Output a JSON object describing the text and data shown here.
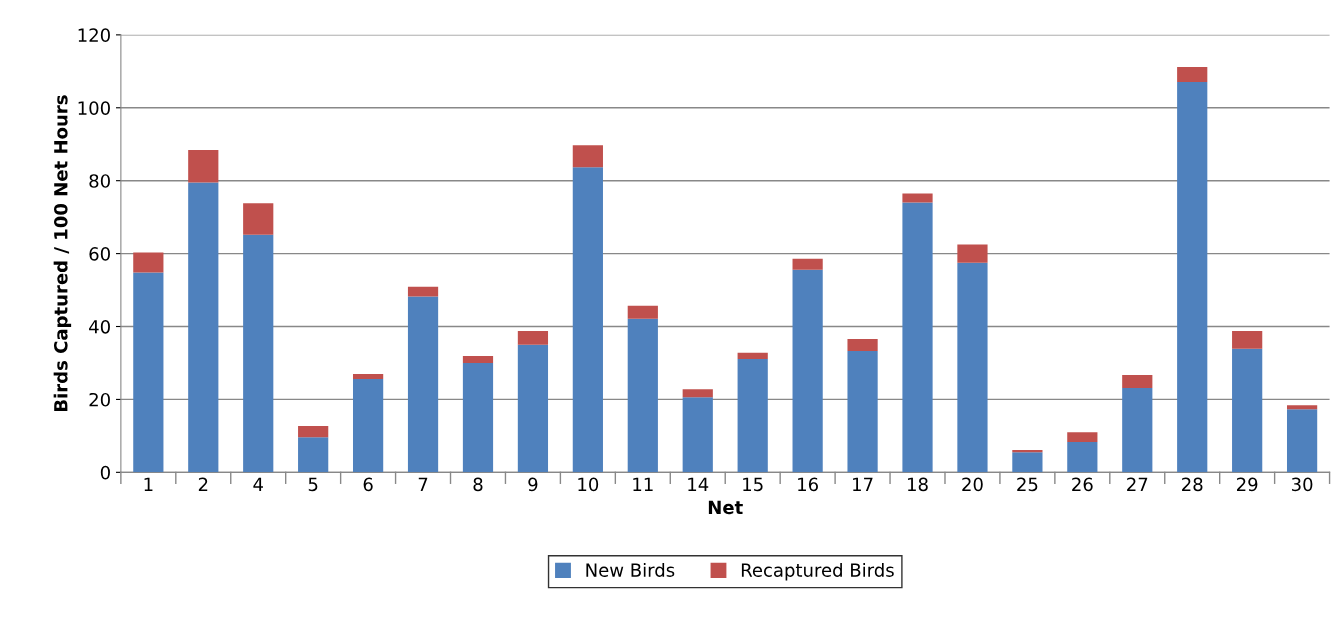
{
  "chart_data": {
    "type": "bar",
    "stacked": true,
    "xlabel": "Net",
    "ylabel": "Birds Captured / 100 Net Hours",
    "categories": [
      "1",
      "2",
      "4",
      "5",
      "6",
      "7",
      "8",
      "9",
      "10",
      "11",
      "14",
      "15",
      "16",
      "17",
      "18",
      "20",
      "25",
      "26",
      "27",
      "28",
      "29",
      "30"
    ],
    "series": [
      {
        "name": "New Birds",
        "color": "#4f81bd",
        "values": [
          54.8,
          79.5,
          65.2,
          9.6,
          25.6,
          48.2,
          30.0,
          35.0,
          83.7,
          42.1,
          20.6,
          31.1,
          55.6,
          33.3,
          74.0,
          57.5,
          5.5,
          8.3,
          23.1,
          107.1,
          33.9,
          17.3
        ]
      },
      {
        "name": "Recaptured Birds",
        "color": "#c0504d",
        "values": [
          5.5,
          8.9,
          8.6,
          3.1,
          1.4,
          2.7,
          1.9,
          3.8,
          6.0,
          3.6,
          2.2,
          1.7,
          3.0,
          3.3,
          2.5,
          5.0,
          0.6,
          2.7,
          3.6,
          4.1,
          4.9,
          1.1
        ]
      }
    ],
    "ylim": [
      0,
      120
    ],
    "yticks": [
      0,
      20,
      40,
      60,
      80,
      100,
      120
    ],
    "grid": "y",
    "legend": "bottom"
  }
}
